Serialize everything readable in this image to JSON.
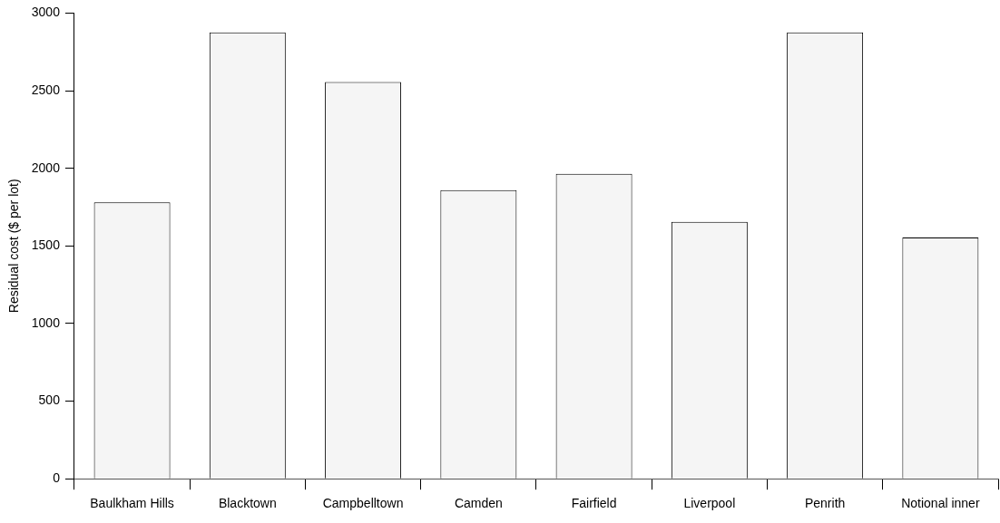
{
  "chart_data": {
    "type": "bar",
    "ylabel": "Residual cost ($ per lot)",
    "categories": [
      "Baulkham Hills",
      "Blacktown",
      "Campbelltown",
      "Camden",
      "Fairfield",
      "Liverpool",
      "Penrith",
      "Notional inner"
    ],
    "values": [
      1780,
      2875,
      2555,
      1860,
      1965,
      1655,
      2875,
      1555
    ],
    "color": "#f5f5f5",
    "ylim": [
      0,
      3000
    ],
    "yticks": [
      0,
      500,
      1000,
      1500,
      2000,
      2500,
      3000
    ],
    "grid": false,
    "legend": false
  }
}
